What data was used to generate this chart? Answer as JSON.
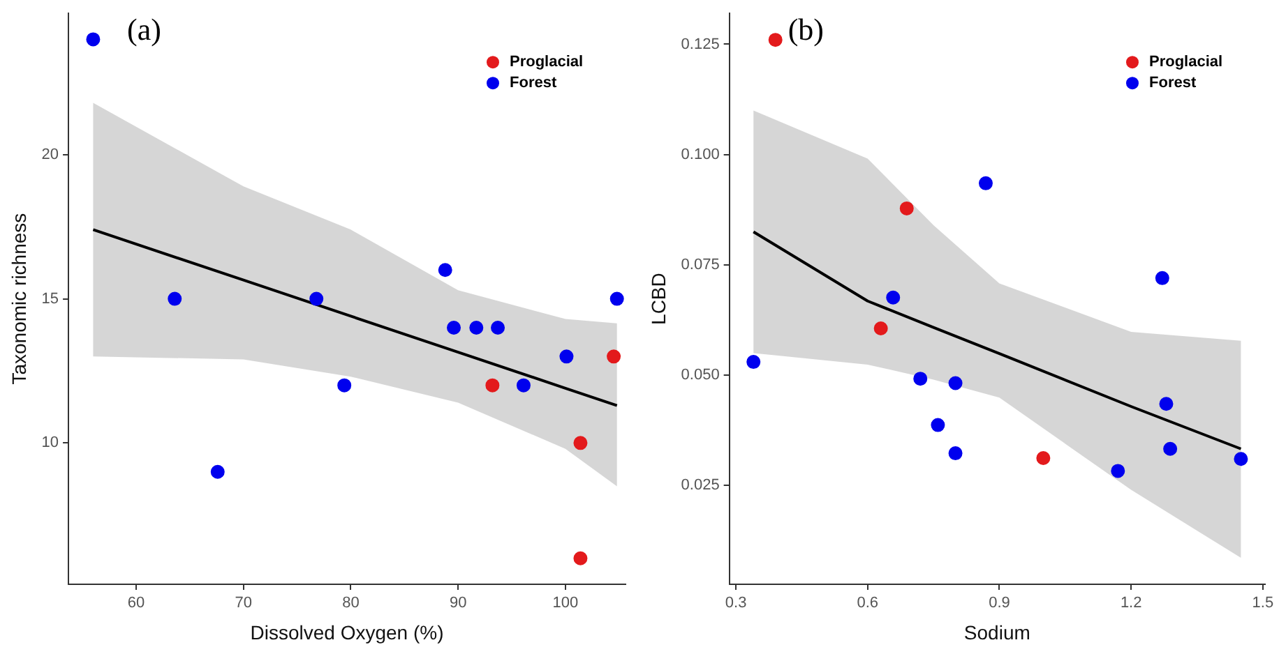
{
  "chart_data": [
    {
      "type": "scatter",
      "annotations": [
        "(a)"
      ],
      "xlabel": "Dissolved Oxygen (%)",
      "ylabel": "Taxonomic richness",
      "xlim": [
        53.7,
        105.6
      ],
      "ylim": [
        5.1,
        24.9
      ],
      "xticks": [
        60,
        70,
        80,
        90,
        100
      ],
      "yticks": [
        10,
        15,
        20
      ],
      "legend": "top right",
      "marker": "circle",
      "series": [
        {
          "name": "Proglacial",
          "color": "#e31a1c",
          "x": [
            93.2,
            101.4,
            101.4,
            104.5
          ],
          "values": [
            12,
            10,
            6,
            13
          ]
        },
        {
          "name": "Forest",
          "color": "#0000ee",
          "x": [
            56,
            63.6,
            67.6,
            76.8,
            79.4,
            88.8,
            89.6,
            91.7,
            93.7,
            96.1,
            100.1,
            104.8
          ],
          "values": [
            24,
            15,
            9,
            15,
            12,
            16,
            14,
            14,
            14,
            12,
            13,
            15
          ]
        },
        {
          "type": "line",
          "marker": "none",
          "color": "#000000",
          "x": [
            56,
            70,
            80,
            90,
            100,
            104.8
          ],
          "values": [
            17.4,
            15.65,
            14.4,
            13.15,
            11.9,
            11.3
          ],
          "lower": [
            13,
            12.9,
            12.3,
            11.4,
            9.8,
            8.5
          ],
          "upper": [
            21.8,
            18.9,
            17.4,
            15.3,
            14.3,
            14.15
          ]
        }
      ]
    },
    {
      "type": "scatter",
      "annotations": [
        "(b)"
      ],
      "xlabel": "Sodium",
      "ylabel": "LCBD",
      "xlim": [
        0.285,
        1.505
      ],
      "ylim": [
        0.0026,
        0.132
      ],
      "xticks": [
        0.3,
        0.6,
        0.9,
        1.2,
        1.5
      ],
      "yticks": [
        0.025,
        {
          "value": 0.05,
          "label": "0.050"
        },
        0.075,
        {
          "value": 0.1,
          "label": "0.100"
        },
        0.125
      ],
      "legend": "top right",
      "marker": "circle",
      "series": [
        {
          "name": "Proglacial",
          "color": "#e31a1c",
          "x": [
            0.39,
            0.689,
            0.63,
            1.0
          ],
          "values": [
            0.126,
            0.0878,
            0.0606,
            0.0312
          ]
        },
        {
          "name": "Forest",
          "color": "#0000ee",
          "x": [
            0.34,
            0.869,
            0.658,
            0.72,
            0.8,
            0.76,
            0.8,
            1.271,
            1.28,
            1.289,
            1.17,
            1.45
          ],
          "values": [
            0.053,
            0.0935,
            0.0676,
            0.0492,
            0.0482,
            0.0387,
            0.0323,
            0.072,
            0.0435,
            0.0333,
            0.0283,
            0.031
          ]
        },
        {
          "type": "line",
          "marker": "none",
          "color": "#000000",
          "x": [
            0.34,
            0.6,
            0.75,
            0.9,
            1.2,
            1.45
          ],
          "values": [
            0.0825,
            0.0668,
            0.0608,
            0.0549,
            0.0429,
            0.0333
          ],
          "lower": [
            0.055,
            0.0524,
            0.049,
            0.0449,
            0.024,
            0.0086
          ],
          "upper": [
            0.11,
            0.0991,
            0.084,
            0.0708,
            0.0598,
            0.0578
          ]
        }
      ]
    }
  ]
}
